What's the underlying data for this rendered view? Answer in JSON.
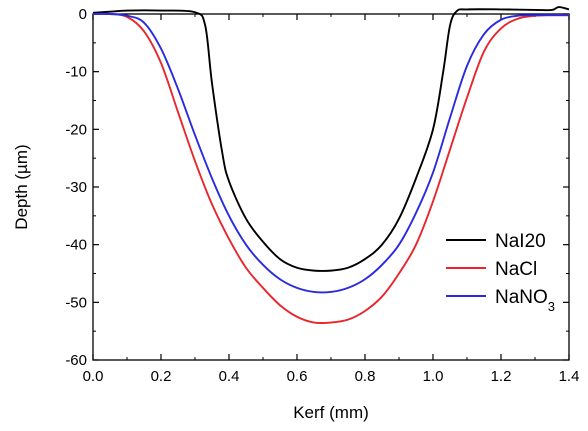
{
  "chart_data": {
    "type": "line",
    "title": "",
    "xlabel": "Kerf (mm)",
    "ylabel": "Depth (µm)",
    "xlim": [
      0.0,
      1.4
    ],
    "ylim": [
      -60,
      0
    ],
    "xticks": [
      "0.0",
      "0.2",
      "0.4",
      "0.6",
      "0.8",
      "1.0",
      "1.2",
      "1.4"
    ],
    "yticks": [
      "0",
      "-10",
      "-20",
      "-30",
      "-40",
      "-50",
      "-60"
    ],
    "grid": false,
    "legend_position": "right",
    "series": [
      {
        "name": "NaI20",
        "legend_parts": [
          {
            "text": "NaI20",
            "sub": false
          }
        ],
        "color": "#000000",
        "x": [
          0.0,
          0.05,
          0.1,
          0.2,
          0.3,
          0.33,
          0.35,
          0.38,
          0.4,
          0.45,
          0.5,
          0.55,
          0.6,
          0.65,
          0.7,
          0.75,
          0.8,
          0.85,
          0.9,
          0.95,
          1.0,
          1.03,
          1.05,
          1.07,
          1.1,
          1.2,
          1.3,
          1.35,
          1.37,
          1.4
        ],
        "y": [
          0.2,
          0.4,
          0.6,
          0.6,
          0.3,
          -2,
          -12,
          -24,
          -29,
          -35.5,
          -39.5,
          -42.5,
          -44,
          -44.5,
          -44.5,
          -44,
          -42.5,
          -40,
          -35.5,
          -28.5,
          -20,
          -10,
          -2,
          0.5,
          0.8,
          0.8,
          0.7,
          0.7,
          1.2,
          0.8
        ]
      },
      {
        "name": "NaCl",
        "legend_parts": [
          {
            "text": "NaCl",
            "sub": false
          }
        ],
        "color": "#e8262b",
        "x": [
          0.0,
          0.05,
          0.1,
          0.15,
          0.2,
          0.25,
          0.3,
          0.35,
          0.4,
          0.45,
          0.5,
          0.55,
          0.6,
          0.65,
          0.7,
          0.75,
          0.8,
          0.85,
          0.9,
          0.95,
          1.0,
          1.05,
          1.1,
          1.15,
          1.2,
          1.25,
          1.3,
          1.35,
          1.4
        ],
        "y": [
          0,
          0,
          -0.5,
          -3,
          -8.5,
          -17,
          -25.5,
          -33,
          -39,
          -44,
          -47.5,
          -50.5,
          -52.5,
          -53.5,
          -53.5,
          -53,
          -51.5,
          -49,
          -45,
          -40,
          -32.5,
          -23.5,
          -14.5,
          -6.5,
          -2.5,
          -0.8,
          -0.3,
          -0.2,
          -0.2
        ]
      },
      {
        "name": "NaNO3",
        "legend_parts": [
          {
            "text": "NaNO",
            "sub": false
          },
          {
            "text": "3",
            "sub": true
          }
        ],
        "color": "#2a2ae0",
        "x": [
          0.0,
          0.05,
          0.1,
          0.15,
          0.2,
          0.25,
          0.3,
          0.35,
          0.4,
          0.45,
          0.5,
          0.55,
          0.6,
          0.65,
          0.7,
          0.75,
          0.8,
          0.85,
          0.9,
          0.95,
          1.0,
          1.05,
          1.1,
          1.15,
          1.2,
          1.25,
          1.3,
          1.35,
          1.4
        ],
        "y": [
          0,
          0,
          -0.3,
          -1.5,
          -6,
          -13,
          -21,
          -28.5,
          -35,
          -40,
          -43.5,
          -46,
          -47.5,
          -48.2,
          -48.2,
          -47.5,
          -46,
          -43.5,
          -40,
          -34.5,
          -27.5,
          -18,
          -9,
          -3.5,
          -1,
          -0.3,
          -0.2,
          -0.2,
          -0.2
        ]
      }
    ]
  }
}
